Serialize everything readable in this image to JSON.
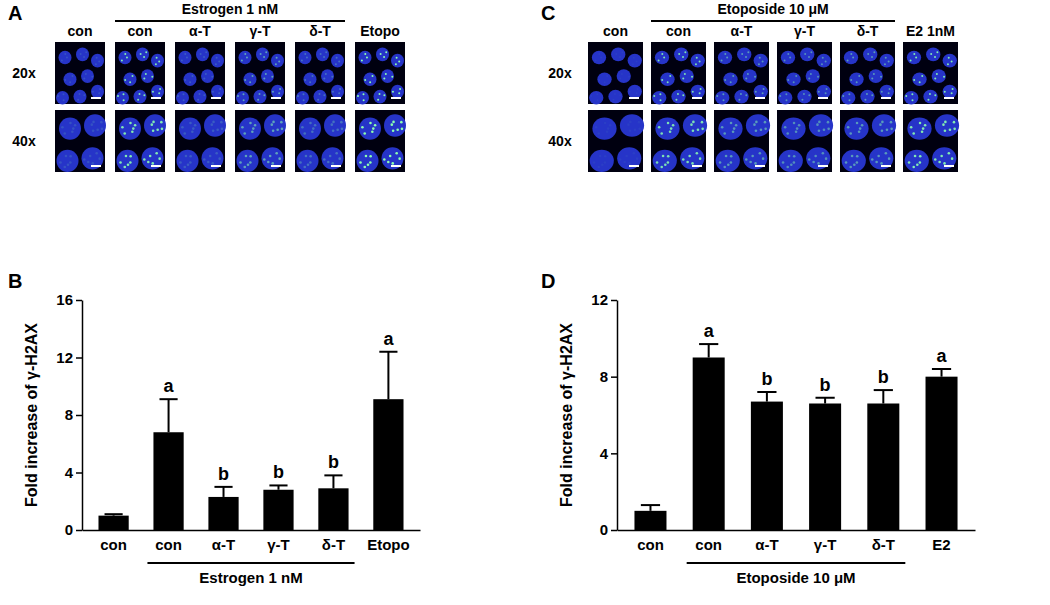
{
  "image_panels": [
    {
      "panel": "A",
      "header": {
        "text": "Estrogen 1 nM",
        "from": 1,
        "to": 4
      },
      "columns": [
        "con",
        "con",
        "α-T",
        "γ-T",
        "δ-T",
        "Etopo"
      ],
      "rows": [
        "20x",
        "40x"
      ]
    },
    {
      "panel": "C",
      "header": {
        "text": "Etoposide 10 μM",
        "from": 1,
        "to": 4
      },
      "columns": [
        "con",
        "con",
        "α-T",
        "γ-T",
        "δ-T",
        "E2 1nM"
      ],
      "rows": [
        "20x",
        "40x"
      ]
    }
  ],
  "chart_data": [
    {
      "type": "bar",
      "panel": "B",
      "y_label": "Fold increase of γ-H2AX",
      "categories": [
        "con",
        "con",
        "α-T",
        "γ-T",
        "δ-T",
        "Etopo"
      ],
      "values": [
        1.0,
        6.8,
        2.3,
        2.8,
        2.9,
        9.1
      ],
      "errors": [
        0.1,
        2.3,
        0.7,
        0.3,
        0.9,
        3.3
      ],
      "annotations": [
        {
          "category_index": 1,
          "text": "a"
        },
        {
          "category_index": 2,
          "text": "b"
        },
        {
          "category_index": 3,
          "text": "b"
        },
        {
          "category_index": 4,
          "text": "b"
        },
        {
          "category_index": 5,
          "text": "a"
        }
      ],
      "group_label": {
        "text": "Estrogen 1 nM",
        "from": 1,
        "to": 4
      },
      "color": "#000000",
      "ylim": [
        0,
        16
      ],
      "yticks": [
        0,
        4,
        8,
        12,
        16
      ],
      "grid": false
    },
    {
      "type": "bar",
      "panel": "D",
      "y_label": "Fold increase of γ-H2AX",
      "categories": [
        "con",
        "con",
        "α-T",
        "γ-T",
        "δ-T",
        "E2"
      ],
      "values": [
        1.0,
        9.0,
        6.7,
        6.6,
        6.6,
        8.0
      ],
      "errors": [
        0.3,
        0.7,
        0.5,
        0.3,
        0.7,
        0.4
      ],
      "annotations": [
        {
          "category_index": 1,
          "text": "a"
        },
        {
          "category_index": 2,
          "text": "b"
        },
        {
          "category_index": 3,
          "text": "b"
        },
        {
          "category_index": 4,
          "text": "b"
        },
        {
          "category_index": 5,
          "text": "a"
        }
      ],
      "group_label": {
        "text": "Etoposide 10 μM",
        "from": 1,
        "to": 4
      },
      "color": "#000000",
      "ylim": [
        0,
        12
      ],
      "yticks": [
        0,
        4,
        8,
        12
      ],
      "grid": false
    }
  ]
}
